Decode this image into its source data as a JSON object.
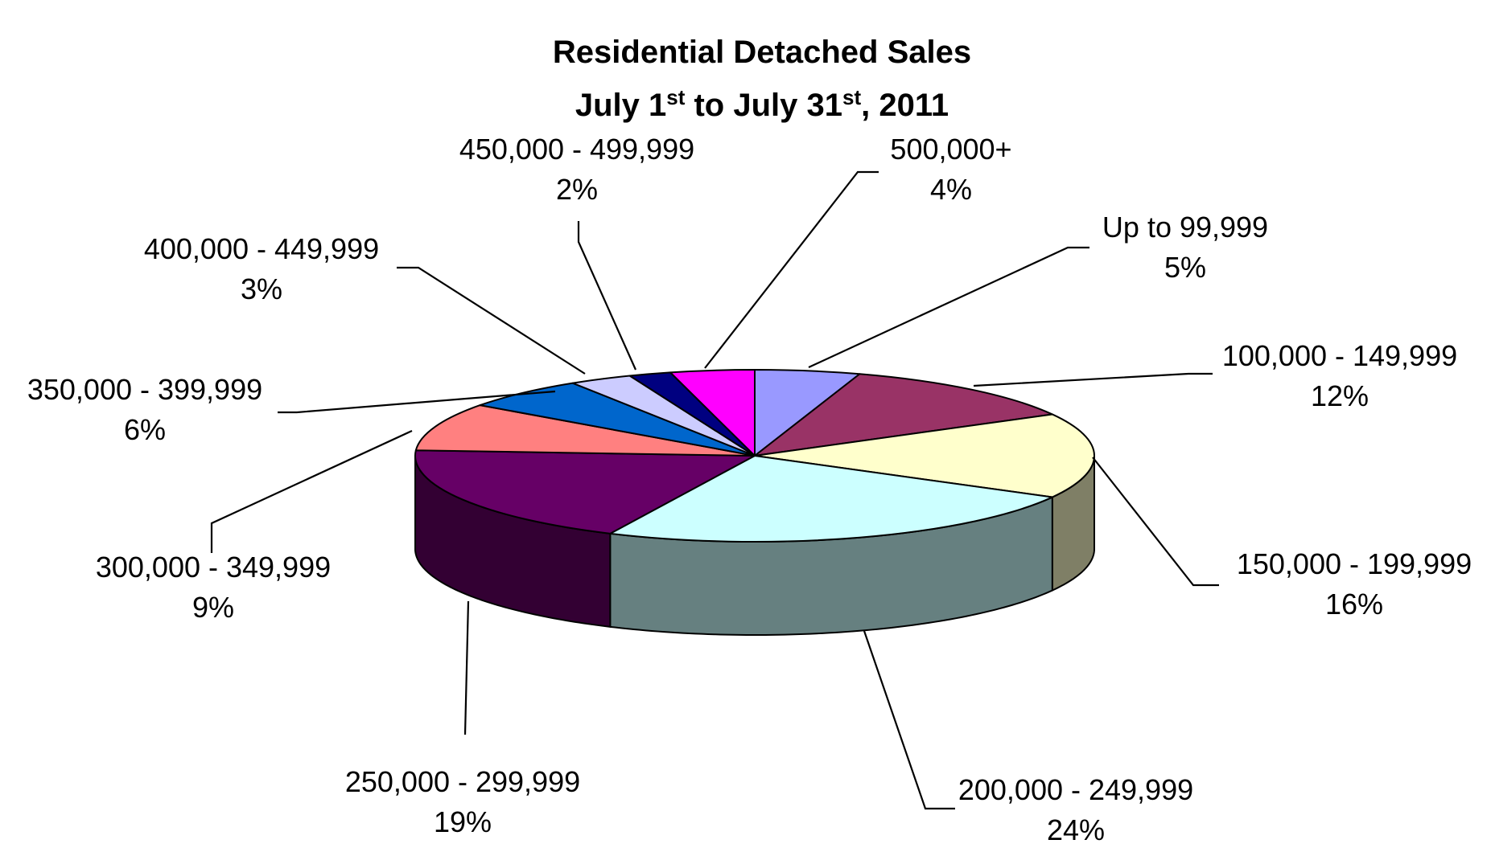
{
  "chart_data": {
    "type": "pie",
    "style": "3d",
    "title": {
      "line1": "Residential Detached Sales",
      "line2": {
        "a": "July 1",
        "a_sup": "st",
        "b": " to July 31",
        "b_sup": "st",
        "c": ", 2011"
      }
    },
    "slices": [
      {
        "label": "Up to 99,999",
        "percent_label": "5%",
        "value": 5,
        "color": "#9999FF",
        "side_color": "#6666B3"
      },
      {
        "label": "100,000 - 149,999",
        "percent_label": "12%",
        "value": 12,
        "color": "#993366",
        "side_color": "#662244"
      },
      {
        "label": "150,000 - 199,999",
        "percent_label": "16%",
        "value": 16,
        "color": "#FFFFCC",
        "side_color": "#7F7F66"
      },
      {
        "label": "200,000 - 249,999",
        "percent_label": "24%",
        "value": 24,
        "color": "#CCFFFF",
        "side_color": "#668080"
      },
      {
        "label": "250,000 - 299,999",
        "percent_label": "19%",
        "value": 19,
        "color": "#660066",
        "side_color": "#330033"
      },
      {
        "label": "300,000 - 349,999",
        "percent_label": "9%",
        "value": 9,
        "color": "#FF8080",
        "side_color": "#B35959"
      },
      {
        "label": "350,000 - 399,999",
        "percent_label": "6%",
        "value": 6,
        "color": "#0066CC",
        "side_color": "#00478F"
      },
      {
        "label": "400,000 - 449,999",
        "percent_label": "3%",
        "value": 3,
        "color": "#CCCCFF",
        "side_color": "#8F8FB3"
      },
      {
        "label": "450,000 - 499,999",
        "percent_label": "2%",
        "value": 2,
        "color": "#000080",
        "side_color": "#000059"
      },
      {
        "label": "500,000+",
        "percent_label": "4%",
        "value": 4,
        "color": "#FF00FF",
        "side_color": "#B300B3"
      }
    ]
  }
}
